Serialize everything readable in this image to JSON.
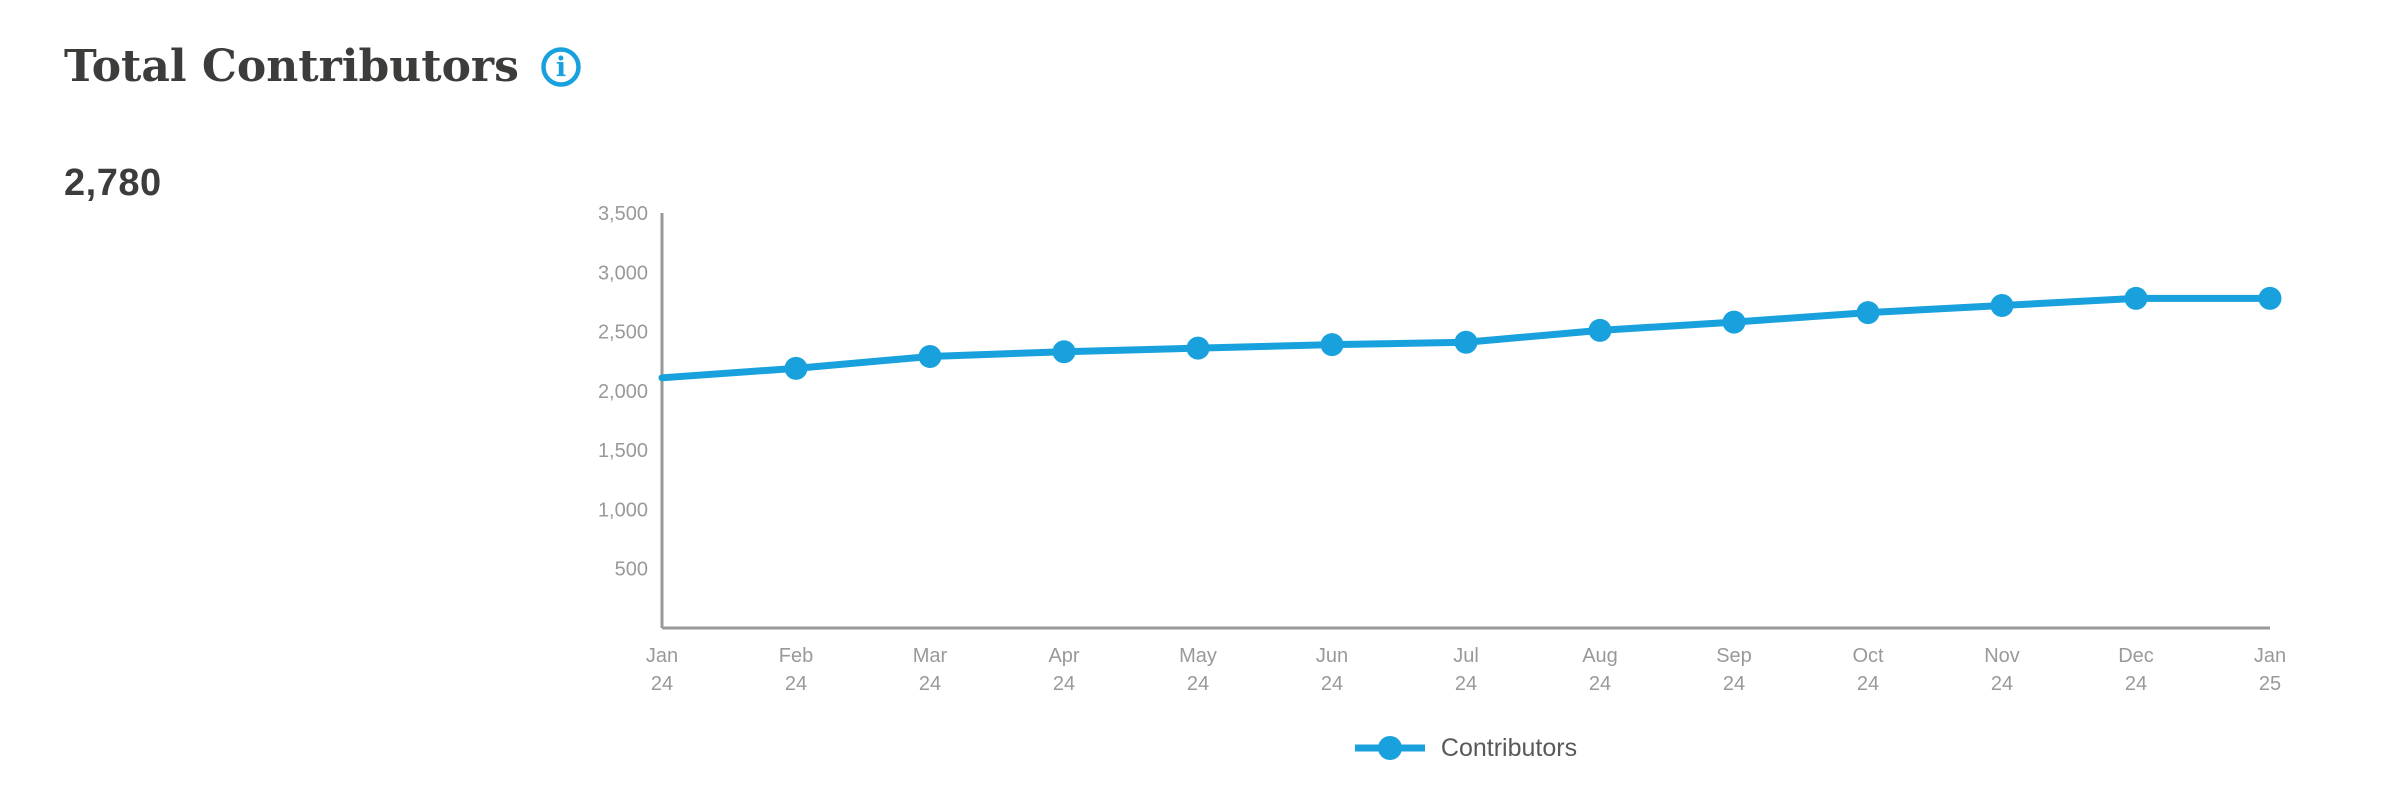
{
  "header": {
    "title": "Total Contributors",
    "info_icon": "info"
  },
  "metric": {
    "value": "2,780"
  },
  "chart_data": {
    "type": "line",
    "title": "Total Contributors",
    "categories": [
      "Jan 24",
      "Feb 24",
      "Mar 24",
      "Apr 24",
      "May 24",
      "Jun 24",
      "Jul 24",
      "Aug 24",
      "Sep 24",
      "Oct 24",
      "Nov 24",
      "Dec 24",
      "Jan 25"
    ],
    "series": [
      {
        "name": "Contributors",
        "values": [
          2110,
          2190,
          2290,
          2330,
          2360,
          2390,
          2410,
          2510,
          2580,
          2660,
          2720,
          2780,
          2780
        ],
        "color": "#18A1DC"
      }
    ],
    "xlabel": "",
    "ylabel": "",
    "ylim": [
      0,
      3500
    ],
    "yticks": [
      500,
      1000,
      1500,
      2000,
      2500,
      3000,
      3500
    ],
    "grid": false,
    "legend_position": "bottom",
    "marker_hidden_indices": [
      0
    ]
  },
  "legend": {
    "items": [
      {
        "label": "Contributors",
        "color": "#18A1DC"
      }
    ]
  },
  "colors": {
    "accent_blue": "#18A1DC",
    "title_text": "#3C3C3B",
    "metric_text": "#3C3C3B",
    "axis_text": "#999999",
    "axis_line": "#999999",
    "legend_text": "#595959",
    "background": "#FFFFFF"
  }
}
